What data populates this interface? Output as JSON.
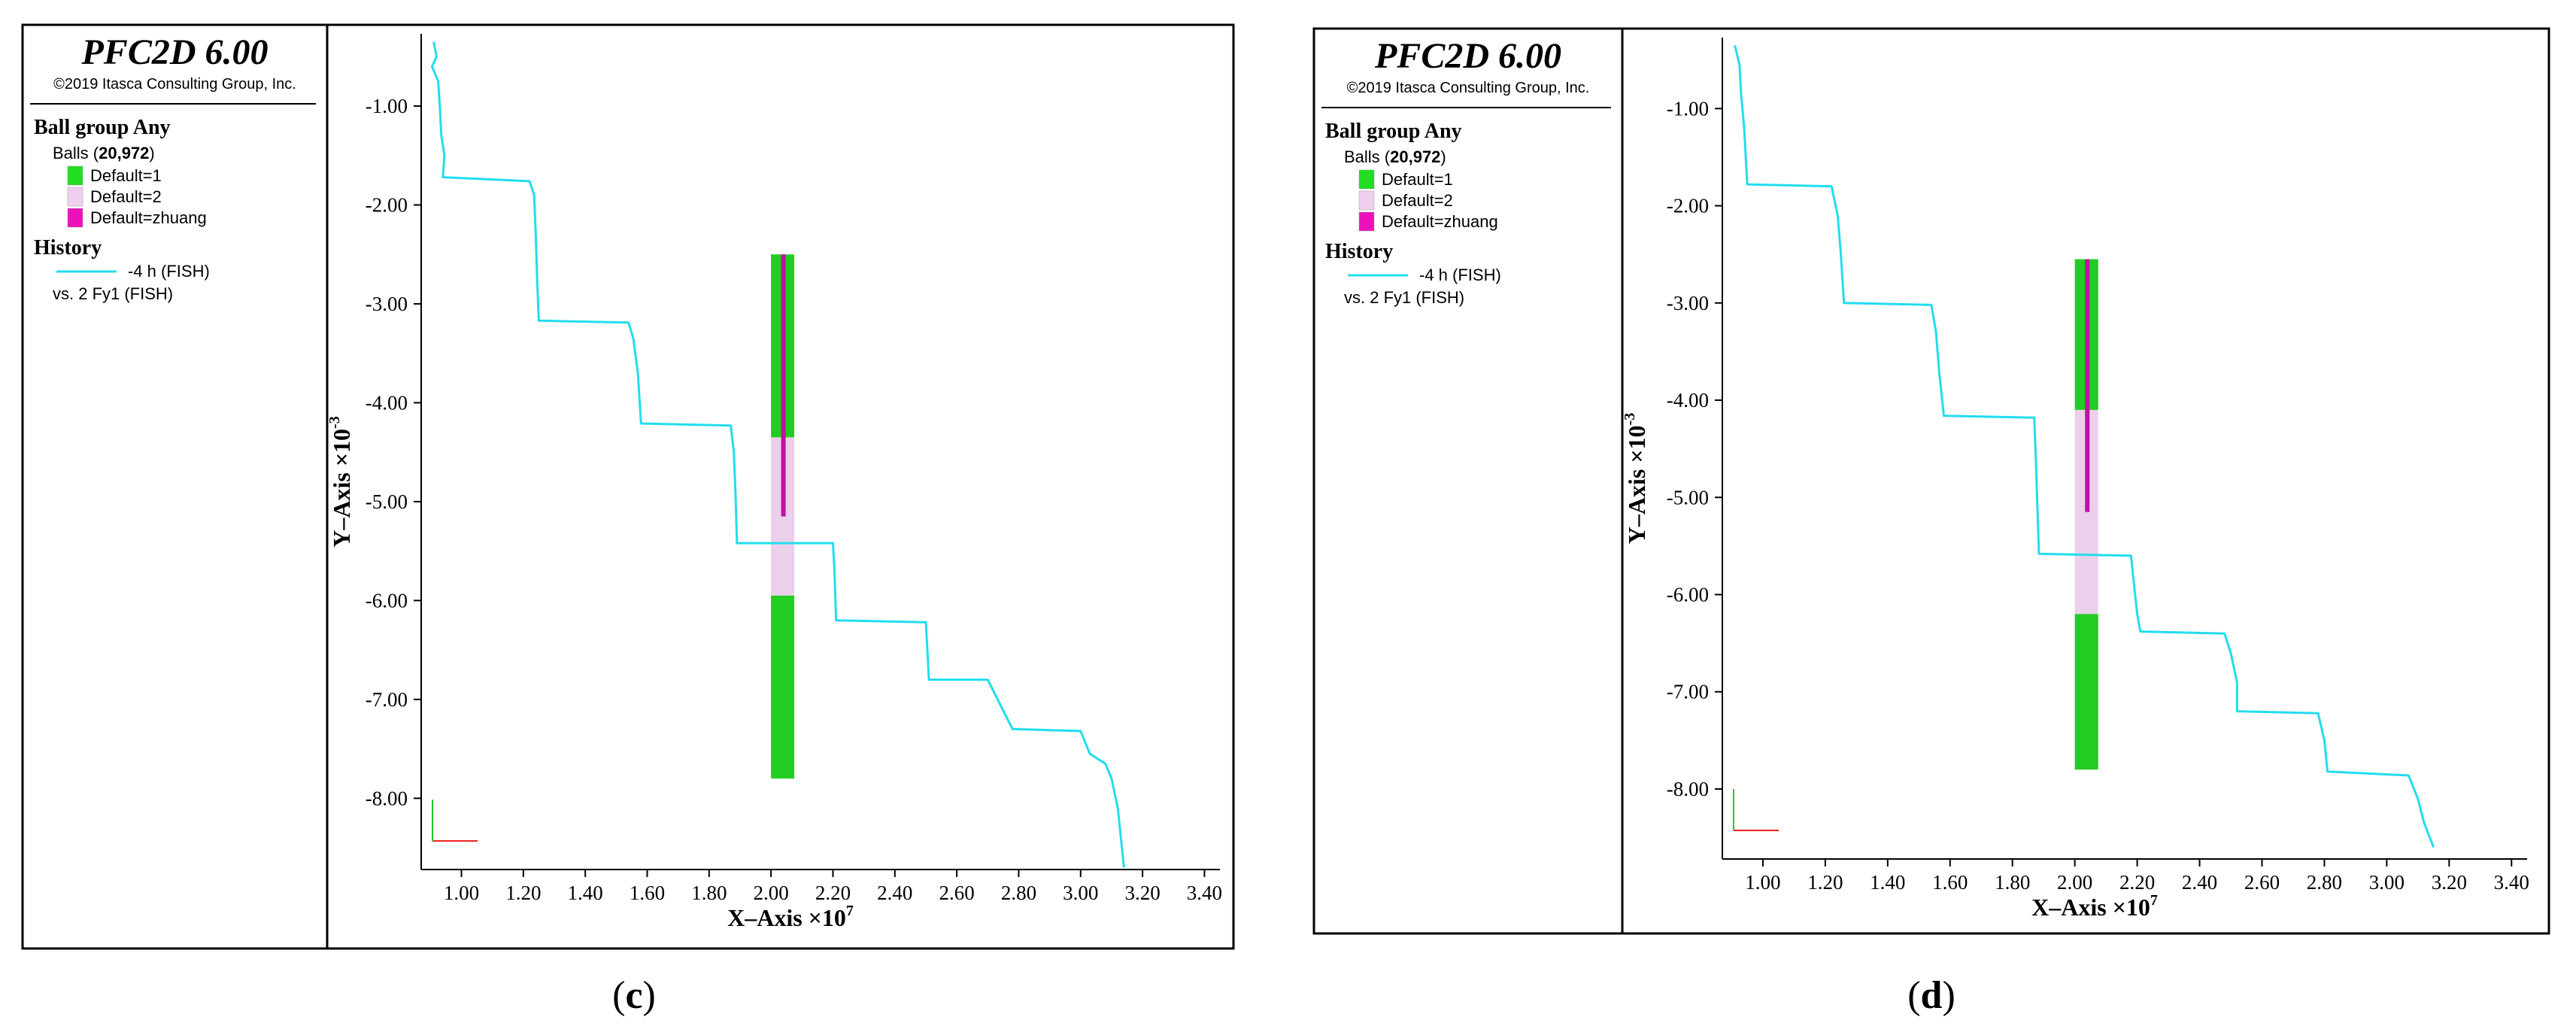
{
  "chart_data": [
    {
      "type": "line",
      "caption": "c",
      "legend": {
        "title": "PFC2D 6.00",
        "copyright": "©2019 Itasca Consulting Group, Inc.",
        "ball_group": "Ball group Any",
        "balls_prefix": "Balls (",
        "balls_count": "20,972",
        "balls_suffix": ")",
        "groups": [
          {
            "label": "Default=1",
            "color": "#22dd22"
          },
          {
            "label": "Default=2",
            "color": "#f0d0f0"
          },
          {
            "label": "Default=zhuang",
            "color": "#ee11bb"
          }
        ],
        "history_title": "History",
        "history_line": "-4 h (FISH)",
        "history_vs": "vs. 2 Fy1 (FISH)"
      },
      "xlabel": "X–Axis ×10",
      "xlabel_exp": "7",
      "ylabel": "Y–Axis ×10",
      "ylabel_exp": "-3",
      "x_ticks": [
        "1.00",
        "1.20",
        "1.40",
        "1.60",
        "1.80",
        "2.00",
        "2.20",
        "2.40",
        "2.60",
        "2.80",
        "3.00",
        "3.20",
        "3.40"
      ],
      "y_ticks": [
        "-1.00",
        "-2.00",
        "-3.00",
        "-4.00",
        "-5.00",
        "-6.00",
        "-7.00",
        "-8.00"
      ],
      "xlim": [
        0.87,
        3.45
      ],
      "ylim": [
        -8.72,
        -0.27
      ],
      "line_color": "#22ddee",
      "series": [
        {
          "values": [
            [
              0.91,
              -0.35
            ],
            [
              0.92,
              -0.5
            ],
            [
              0.905,
              -0.6
            ],
            [
              0.925,
              -0.75
            ],
            [
              0.93,
              -1.0
            ],
            [
              0.935,
              -1.3
            ],
            [
              0.945,
              -1.5
            ],
            [
              0.94,
              -1.72
            ],
            [
              1.22,
              -1.76
            ],
            [
              1.235,
              -1.9
            ],
            [
              1.24,
              -2.3
            ],
            [
              1.245,
              -2.8
            ],
            [
              1.25,
              -3.17
            ],
            [
              1.54,
              -3.19
            ],
            [
              1.555,
              -3.35
            ],
            [
              1.57,
              -3.7
            ],
            [
              1.58,
              -4.21
            ],
            [
              1.87,
              -4.23
            ],
            [
              1.88,
              -4.5
            ],
            [
              1.885,
              -4.9
            ],
            [
              1.89,
              -5.42
            ],
            [
              2.2,
              -5.42
            ],
            [
              2.205,
              -5.7
            ],
            [
              2.21,
              -6.2
            ],
            [
              2.5,
              -6.22
            ],
            [
              2.505,
              -6.5
            ],
            [
              2.51,
              -6.8
            ],
            [
              2.7,
              -6.8
            ],
            [
              2.74,
              -7.05
            ],
            [
              2.78,
              -7.3
            ],
            [
              3.0,
              -7.32
            ],
            [
              3.03,
              -7.55
            ],
            [
              3.08,
              -7.65
            ],
            [
              3.1,
              -7.8
            ],
            [
              3.12,
              -8.1
            ],
            [
              3.13,
              -8.4
            ],
            [
              3.14,
              -8.7
            ]
          ]
        }
      ]
    },
    {
      "type": "line",
      "caption": "d",
      "legend": {
        "title": "PFC2D 6.00",
        "copyright": "©2019 Itasca Consulting Group, Inc.",
        "ball_group": "Ball group Any",
        "balls_prefix": "Balls (",
        "balls_count": "20,972",
        "balls_suffix": ")",
        "groups": [
          {
            "label": "Default=1",
            "color": "#22dd22"
          },
          {
            "label": "Default=2",
            "color": "#f0d0f0"
          },
          {
            "label": "Default=zhuang",
            "color": "#ee11bb"
          }
        ],
        "history_title": "History",
        "history_line": "-4 h (FISH)",
        "history_vs": "vs. 2 Fy1 (FISH)"
      },
      "xlabel": "X–Axis ×10",
      "xlabel_exp": "7",
      "ylabel": "Y–Axis ×10",
      "ylabel_exp": "-3",
      "x_ticks": [
        "1.00",
        "1.20",
        "1.40",
        "1.60",
        "1.80",
        "2.00",
        "2.20",
        "2.40",
        "2.60",
        "2.80",
        "3.00",
        "3.20",
        "3.40"
      ],
      "y_ticks": [
        "-1.00",
        "-2.00",
        "-3.00",
        "-4.00",
        "-5.00",
        "-6.00",
        "-7.00",
        "-8.00"
      ],
      "xlim": [
        0.87,
        3.45
      ],
      "ylim": [
        -8.72,
        -0.27
      ],
      "line_color": "#22ddee",
      "series": [
        {
          "values": [
            [
              0.91,
              -0.35
            ],
            [
              0.925,
              -0.55
            ],
            [
              0.93,
              -0.85
            ],
            [
              0.94,
              -1.2
            ],
            [
              0.945,
              -1.5
            ],
            [
              0.95,
              -1.78
            ],
            [
              1.22,
              -1.8
            ],
            [
              1.24,
              -2.1
            ],
            [
              1.25,
              -2.5
            ],
            [
              1.26,
              -3.0
            ],
            [
              1.54,
              -3.02
            ],
            [
              1.555,
              -3.3
            ],
            [
              1.565,
              -3.7
            ],
            [
              1.58,
              -4.16
            ],
            [
              1.87,
              -4.18
            ],
            [
              1.875,
              -4.6
            ],
            [
              1.88,
              -5.1
            ],
            [
              1.885,
              -5.58
            ],
            [
              2.18,
              -5.6
            ],
            [
              2.19,
              -5.9
            ],
            [
              2.2,
              -6.2
            ],
            [
              2.21,
              -6.38
            ],
            [
              2.48,
              -6.4
            ],
            [
              2.5,
              -6.6
            ],
            [
              2.52,
              -6.9
            ],
            [
              2.52,
              -7.2
            ],
            [
              2.78,
              -7.22
            ],
            [
              2.8,
              -7.5
            ],
            [
              2.81,
              -7.82
            ],
            [
              3.07,
              -7.86
            ],
            [
              3.1,
              -8.1
            ],
            [
              3.12,
              -8.35
            ],
            [
              3.15,
              -8.6
            ]
          ]
        }
      ]
    }
  ]
}
